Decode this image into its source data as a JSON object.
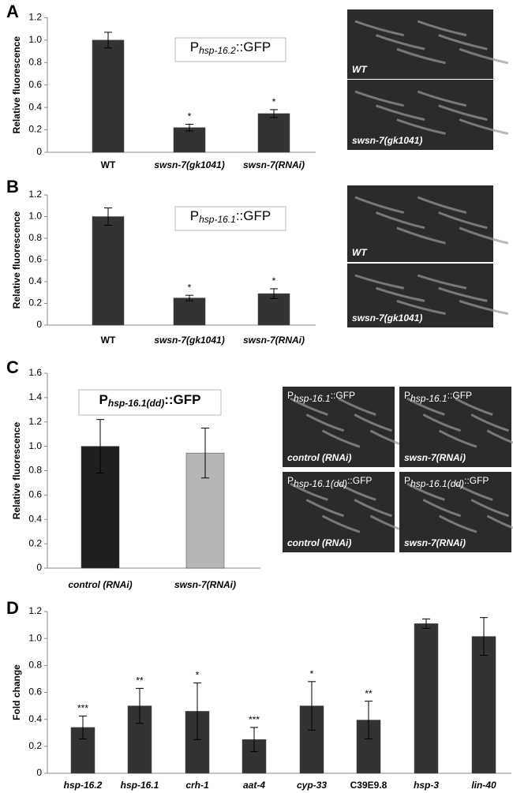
{
  "chart_data": [
    {
      "type": "bar",
      "panel_label": "A",
      "y_label": "Relative fluorescence",
      "annotation": {
        "prefix": "P",
        "subscript": "hsp-16.2",
        "suffix": "::GFP"
      },
      "categories": [
        "WT",
        "swsn-7(gk1041)",
        "swsn-7(RNAi)"
      ],
      "category_italic": [
        false,
        true,
        true
      ],
      "series": [
        {
          "color": "#333333",
          "values": [
            1.0,
            0.22,
            0.345
          ],
          "errors": [
            0.07,
            0.03,
            0.035
          ],
          "significance": [
            null,
            "*",
            "*"
          ]
        }
      ],
      "ylim": [
        0,
        1.2
      ],
      "yticks": [
        0,
        0.2,
        0.4,
        0.6,
        0.8,
        {
          "value": 1,
          "label": "1.0"
        },
        1.2
      ]
    },
    {
      "type": "bar",
      "panel_label": "B",
      "y_label": "Relative fluorescence",
      "annotation": {
        "prefix": "P",
        "subscript": "hsp-16.1",
        "suffix": "::GFP"
      },
      "categories": [
        "WT",
        "swsn-7(gk1041)",
        "swsn-7(RNAi)"
      ],
      "category_italic": [
        false,
        true,
        true
      ],
      "series": [
        {
          "color": "#333333",
          "values": [
            1.0,
            0.25,
            0.29
          ],
          "errors": [
            0.08,
            0.025,
            0.045
          ],
          "significance": [
            null,
            "*",
            "*"
          ]
        }
      ],
      "ylim": [
        0,
        1.2
      ],
      "yticks": [
        0,
        0.2,
        0.4,
        0.6,
        0.8,
        {
          "value": 1,
          "label": "1.0"
        },
        1.2
      ]
    },
    {
      "type": "bar",
      "panel_label": "C",
      "y_label": "Relative fluorescence",
      "annotation": {
        "prefix": "P",
        "subscript": "hsp-16.1(dd)",
        "suffix": "::GFP"
      },
      "categories": [
        "control (RNAi)",
        "swsn-7(RNAi)"
      ],
      "category_italic": [
        true,
        true
      ],
      "series": [
        {
          "colors": [
            "#1f1f1f",
            "#b5b5b5"
          ],
          "values": [
            1.0,
            0.945
          ],
          "errors": [
            0.22,
            0.205
          ]
        }
      ],
      "ylim": [
        0,
        1.6
      ],
      "yticks": [
        0,
        0.2,
        0.4,
        0.6,
        0.8,
        {
          "value": 1,
          "label": "1.0"
        },
        1.2,
        1.4,
        1.6
      ]
    },
    {
      "type": "bar",
      "panel_label": "D",
      "y_label": "Fold change",
      "categories": [
        "hsp-16.2",
        "hsp-16.1",
        "crh-1",
        "aat-4",
        "cyp-33",
        "C39E9.8",
        "hsp-3",
        "lin-40"
      ],
      "category_italic": [
        true,
        true,
        true,
        true,
        true,
        false,
        true,
        true
      ],
      "series": [
        {
          "color": "#333333",
          "values": [
            0.34,
            0.5,
            0.46,
            0.25,
            0.5,
            0.395,
            1.11,
            1.015
          ],
          "errors": [
            0.085,
            0.13,
            0.21,
            0.09,
            0.18,
            0.14,
            0.035,
            0.14
          ],
          "significance": [
            "***",
            "**",
            "*",
            "***",
            "*",
            "**",
            null,
            null
          ]
        }
      ],
      "ylim": [
        0,
        1.2
      ],
      "yticks": [
        0,
        0.2,
        0.4,
        0.6,
        0.8,
        {
          "value": 1,
          "label": "1.0"
        },
        1.2
      ]
    }
  ],
  "micrographs": [
    [
      {
        "label": "WT"
      },
      {
        "label": "swsn-7(gk1041)"
      }
    ],
    [
      {
        "label": "WT"
      },
      {
        "label": "swsn-7(gk1041)"
      }
    ],
    [
      {
        "reporter": {
          "prefix": "P",
          "subscript": "hsp-16.1",
          "suffix": "::GFP"
        },
        "label": "control (RNAi)"
      },
      {
        "reporter": {
          "prefix": "P",
          "subscript": "hsp-16.1",
          "suffix": "::GFP"
        },
        "label": "swsn-7(RNAi)"
      },
      {
        "reporter": {
          "prefix": "P",
          "subscript": "hsp-16.1(dd)",
          "suffix": "::GFP"
        },
        "label": "control (RNAi)"
      },
      {
        "reporter": {
          "prefix": "P",
          "subscript": "hsp-16.1(dd)",
          "suffix": "::GFP"
        },
        "label": "swsn-7(RNAi)"
      }
    ]
  ]
}
